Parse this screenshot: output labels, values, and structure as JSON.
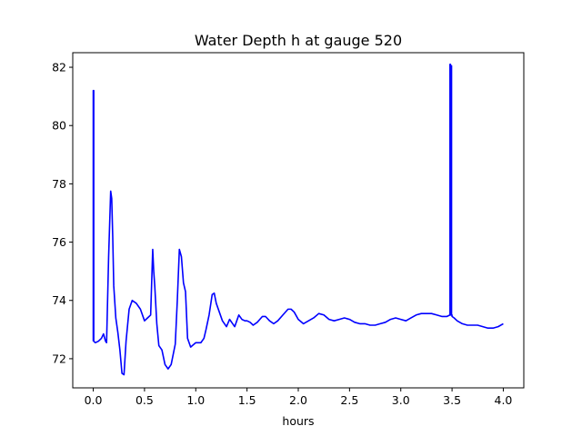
{
  "chart_data": {
    "type": "line",
    "title": "Water Depth h at gauge 520",
    "xlabel": "hours",
    "ylabel": "",
    "xlim": [
      -0.2,
      4.2
    ],
    "ylim": [
      71.0,
      82.5
    ],
    "xticks": [
      0.0,
      0.5,
      1.0,
      1.5,
      2.0,
      2.5,
      3.0,
      3.5,
      4.0
    ],
    "xtick_labels": [
      "0.0",
      "0.5",
      "1.0",
      "1.5",
      "2.0",
      "2.5",
      "3.0",
      "3.5",
      "4.0"
    ],
    "yticks": [
      72,
      74,
      76,
      78,
      80,
      82
    ],
    "ytick_labels": [
      "72",
      "74",
      "76",
      "78",
      "80",
      "82"
    ],
    "grid": false,
    "line_color": "#0000ff",
    "series": [
      {
        "x": [
          0.0,
          0.0,
          0.005,
          0.005,
          0.02,
          0.05,
          0.08,
          0.1,
          0.12,
          0.13,
          0.15,
          0.17,
          0.18,
          0.19,
          0.2,
          0.22,
          0.24,
          0.26,
          0.28,
          0.3,
          0.32,
          0.35,
          0.38,
          0.42,
          0.46,
          0.5,
          0.53,
          0.56,
          0.58,
          0.59,
          0.6,
          0.62,
          0.64,
          0.67,
          0.7,
          0.73,
          0.76,
          0.8,
          0.82,
          0.84,
          0.86,
          0.88,
          0.9,
          0.92,
          0.95,
          1.0,
          1.05,
          1.08,
          1.1,
          1.13,
          1.16,
          1.18,
          1.2,
          1.23,
          1.26,
          1.3,
          1.33,
          1.36,
          1.38,
          1.4,
          1.42,
          1.45,
          1.48,
          1.5,
          1.53,
          1.56,
          1.6,
          1.65,
          1.68,
          1.72,
          1.76,
          1.8,
          1.85,
          1.9,
          1.93,
          1.96,
          2.0,
          2.05,
          2.1,
          2.15,
          2.2,
          2.25,
          2.3,
          2.35,
          2.4,
          2.45,
          2.5,
          2.55,
          2.6,
          2.65,
          2.7,
          2.75,
          2.8,
          2.85,
          2.9,
          2.95,
          3.0,
          3.05,
          3.1,
          3.15,
          3.2,
          3.25,
          3.3,
          3.35,
          3.4,
          3.45,
          3.48,
          3.48,
          3.485,
          3.485,
          3.49,
          3.49,
          3.495,
          3.495,
          3.5,
          3.5,
          3.52,
          3.55,
          3.6,
          3.65,
          3.7,
          3.75,
          3.8,
          3.85,
          3.9,
          3.95,
          4.0
        ],
        "y": [
          72.6,
          81.2,
          81.2,
          72.6,
          72.55,
          72.6,
          72.7,
          72.85,
          72.6,
          72.55,
          75.5,
          77.75,
          77.5,
          76.2,
          74.5,
          73.4,
          72.9,
          72.3,
          71.5,
          71.45,
          72.6,
          73.7,
          74.0,
          73.9,
          73.7,
          73.3,
          73.4,
          73.5,
          75.75,
          75.0,
          74.5,
          73.2,
          72.45,
          72.3,
          71.8,
          71.65,
          71.8,
          72.5,
          74.0,
          75.75,
          75.5,
          74.6,
          74.3,
          72.7,
          72.4,
          72.55,
          72.55,
          72.7,
          73.0,
          73.5,
          74.2,
          74.25,
          73.9,
          73.6,
          73.3,
          73.1,
          73.35,
          73.2,
          73.1,
          73.3,
          73.5,
          73.35,
          73.3,
          73.3,
          73.25,
          73.15,
          73.25,
          73.45,
          73.45,
          73.3,
          73.2,
          73.3,
          73.5,
          73.7,
          73.7,
          73.6,
          73.35,
          73.2,
          73.3,
          73.4,
          73.55,
          73.5,
          73.35,
          73.3,
          73.35,
          73.4,
          73.35,
          73.25,
          73.2,
          73.2,
          73.15,
          73.15,
          73.2,
          73.25,
          73.35,
          73.4,
          73.35,
          73.3,
          73.4,
          73.5,
          73.55,
          73.55,
          73.55,
          73.5,
          73.45,
          73.45,
          73.5,
          82.1,
          82.1,
          73.5,
          73.5,
          82.05,
          82.05,
          73.5,
          73.5,
          73.45,
          73.4,
          73.3,
          73.2,
          73.15,
          73.15,
          73.15,
          73.1,
          73.05,
          73.05,
          73.1,
          73.2
        ]
      }
    ]
  }
}
